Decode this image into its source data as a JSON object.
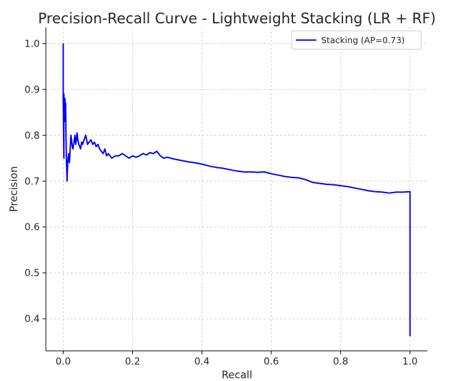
{
  "chart_data": {
    "type": "line",
    "title": "Precision-Recall Curve - Lightweight Stacking (LR + RF)",
    "xlabel": "Recall",
    "ylabel": "Precision",
    "xlim": [
      -0.05,
      1.05
    ],
    "ylim": [
      0.33,
      1.035
    ],
    "xticks": [
      0.0,
      0.2,
      0.4,
      0.6,
      0.8,
      1.0
    ],
    "xtick_labels": [
      "0.0",
      "0.2",
      "0.4",
      "0.6",
      "0.8",
      "1.0"
    ],
    "yticks": [
      0.4,
      0.5,
      0.6,
      0.7,
      0.8,
      0.9,
      1.0
    ],
    "ytick_labels": [
      "0.4",
      "0.5",
      "0.6",
      "0.7",
      "0.8",
      "0.9",
      "1.0"
    ],
    "grid": true,
    "legend": "top-right",
    "series": [
      {
        "name": "Stacking (AP=0.73)",
        "color": "#0000ff",
        "x": [
          0.0,
          0.0,
          0.002,
          0.002,
          0.003,
          0.004,
          0.005,
          0.006,
          0.007,
          0.008,
          0.009,
          0.01,
          0.011,
          0.012,
          0.013,
          0.014,
          0.016,
          0.018,
          0.02,
          0.022,
          0.024,
          0.026,
          0.028,
          0.03,
          0.032,
          0.034,
          0.036,
          0.038,
          0.04,
          0.042,
          0.045,
          0.048,
          0.05,
          0.053,
          0.056,
          0.06,
          0.065,
          0.07,
          0.075,
          0.08,
          0.085,
          0.09,
          0.095,
          0.1,
          0.105,
          0.11,
          0.115,
          0.12,
          0.125,
          0.13,
          0.14,
          0.15,
          0.16,
          0.17,
          0.18,
          0.19,
          0.2,
          0.21,
          0.22,
          0.23,
          0.24,
          0.25,
          0.26,
          0.27,
          0.28,
          0.29,
          0.3,
          0.32,
          0.34,
          0.36,
          0.38,
          0.4,
          0.42,
          0.44,
          0.46,
          0.48,
          0.5,
          0.52,
          0.54,
          0.56,
          0.58,
          0.6,
          0.62,
          0.64,
          0.66,
          0.68,
          0.7,
          0.72,
          0.74,
          0.76,
          0.78,
          0.8,
          0.82,
          0.84,
          0.86,
          0.88,
          0.9,
          0.92,
          0.94,
          0.96,
          0.98,
          1.0,
          1.0
        ],
        "y": [
          1.0,
          0.88,
          0.75,
          0.89,
          0.86,
          0.83,
          0.88,
          0.85,
          0.87,
          0.8,
          0.75,
          0.73,
          0.7,
          0.72,
          0.74,
          0.75,
          0.76,
          0.74,
          0.77,
          0.8,
          0.79,
          0.775,
          0.77,
          0.78,
          0.79,
          0.8,
          0.78,
          0.79,
          0.805,
          0.79,
          0.78,
          0.775,
          0.77,
          0.785,
          0.78,
          0.79,
          0.8,
          0.78,
          0.785,
          0.79,
          0.78,
          0.785,
          0.775,
          0.78,
          0.77,
          0.765,
          0.76,
          0.77,
          0.755,
          0.76,
          0.75,
          0.755,
          0.755,
          0.76,
          0.755,
          0.75,
          0.755,
          0.752,
          0.755,
          0.76,
          0.757,
          0.762,
          0.76,
          0.765,
          0.755,
          0.75,
          0.752,
          0.748,
          0.745,
          0.742,
          0.74,
          0.737,
          0.733,
          0.73,
          0.728,
          0.725,
          0.722,
          0.72,
          0.72,
          0.719,
          0.72,
          0.716,
          0.713,
          0.71,
          0.708,
          0.707,
          0.703,
          0.697,
          0.695,
          0.693,
          0.692,
          0.69,
          0.688,
          0.685,
          0.682,
          0.679,
          0.677,
          0.676,
          0.674,
          0.676,
          0.676,
          0.677,
          0.362
        ]
      }
    ]
  }
}
